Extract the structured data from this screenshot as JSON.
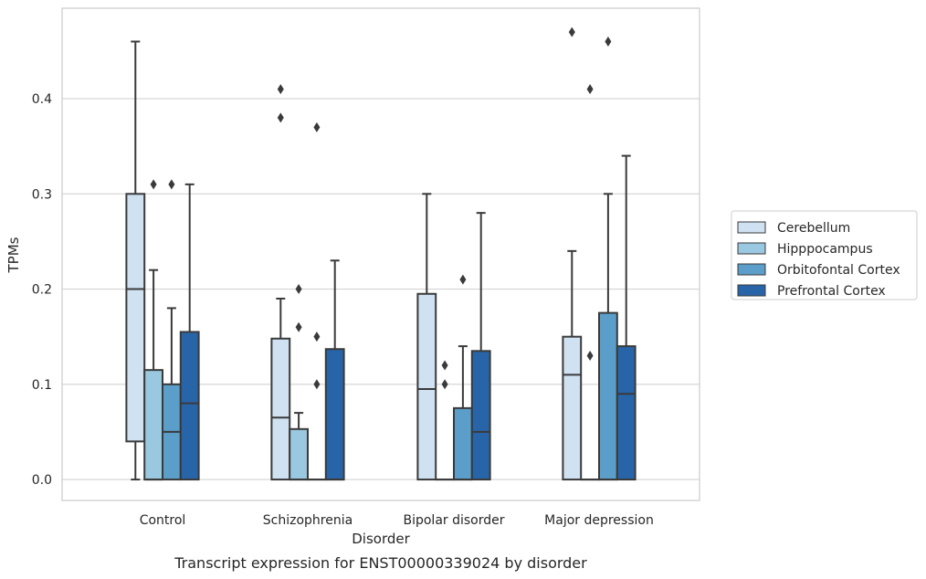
{
  "chart_data": {
    "type": "box",
    "title": "",
    "caption": "Transcript expression for ENST00000339024 by disorder",
    "xlabel": "Disorder",
    "ylabel": "TPMs",
    "ylim": [
      -0.022,
      0.495
    ],
    "yticks": [
      0.0,
      0.1,
      0.2,
      0.3,
      0.4
    ],
    "ytick_labels": [
      "0.0",
      "0.1",
      "0.2",
      "0.3",
      "0.4"
    ],
    "grid": "horizontal",
    "legend_position": "right",
    "categories": [
      "Control",
      "Schizophrenia",
      "Bipolar disorder",
      "Major depression"
    ],
    "series": [
      {
        "name": "Cerebellum",
        "color": "#d0e1f2",
        "boxes": [
          {
            "q1": 0.04,
            "median": 0.2,
            "q3": 0.3,
            "whisker_low": 0.0,
            "whisker_high": 0.46,
            "outliers": []
          },
          {
            "q1": 0.0,
            "median": 0.065,
            "q3": 0.148,
            "whisker_low": 0.0,
            "whisker_high": 0.19,
            "outliers": [
              0.38,
              0.41
            ]
          },
          {
            "q1": 0.0,
            "median": 0.095,
            "q3": 0.195,
            "whisker_low": 0.0,
            "whisker_high": 0.3,
            "outliers": []
          },
          {
            "q1": 0.0,
            "median": 0.11,
            "q3": 0.15,
            "whisker_low": 0.0,
            "whisker_high": 0.24,
            "outliers": [
              0.47
            ]
          }
        ]
      },
      {
        "name": "Hipppocampus",
        "color": "#9ac8e0",
        "boxes": [
          {
            "q1": 0.0,
            "median": 0.0,
            "q3": 0.115,
            "whisker_low": 0.0,
            "whisker_high": 0.22,
            "outliers": [
              0.31
            ]
          },
          {
            "q1": 0.0,
            "median": 0.0,
            "q3": 0.053,
            "whisker_low": 0.0,
            "whisker_high": 0.07,
            "outliers": [
              0.16,
              0.2
            ]
          },
          {
            "q1": 0.0,
            "median": 0.0,
            "q3": 0.0,
            "whisker_low": 0.0,
            "whisker_high": 0.0,
            "outliers": [
              0.1,
              0.12
            ]
          },
          {
            "q1": 0.0,
            "median": 0.0,
            "q3": 0.0,
            "whisker_low": 0.0,
            "whisker_high": 0.0,
            "outliers": [
              0.13,
              0.41
            ]
          }
        ]
      },
      {
        "name": "Orbitofontal Cortex",
        "color": "#5a9ec9",
        "boxes": [
          {
            "q1": 0.0,
            "median": 0.05,
            "q3": 0.1,
            "whisker_low": 0.0,
            "whisker_high": 0.18,
            "outliers": [
              0.31
            ]
          },
          {
            "q1": 0.0,
            "median": 0.0,
            "q3": 0.0,
            "whisker_low": 0.0,
            "whisker_high": 0.0,
            "outliers": [
              0.1,
              0.15,
              0.37
            ]
          },
          {
            "q1": 0.0,
            "median": 0.0,
            "q3": 0.075,
            "whisker_low": 0.0,
            "whisker_high": 0.14,
            "outliers": [
              0.21
            ]
          },
          {
            "q1": 0.0,
            "median": 0.0,
            "q3": 0.175,
            "whisker_low": 0.0,
            "whisker_high": 0.3,
            "outliers": [
              0.46
            ]
          }
        ]
      },
      {
        "name": "Prefrontal Cortex",
        "color": "#2865a8",
        "boxes": [
          {
            "q1": 0.0,
            "median": 0.08,
            "q3": 0.155,
            "whisker_low": 0.0,
            "whisker_high": 0.31,
            "outliers": []
          },
          {
            "q1": 0.0,
            "median": 0.0,
            "q3": 0.137,
            "whisker_low": 0.0,
            "whisker_high": 0.23,
            "outliers": []
          },
          {
            "q1": 0.0,
            "median": 0.05,
            "q3": 0.135,
            "whisker_low": 0.0,
            "whisker_high": 0.28,
            "outliers": []
          },
          {
            "q1": 0.0,
            "median": 0.09,
            "q3": 0.14,
            "whisker_low": 0.0,
            "whisker_high": 0.34,
            "outliers": []
          }
        ]
      }
    ]
  }
}
